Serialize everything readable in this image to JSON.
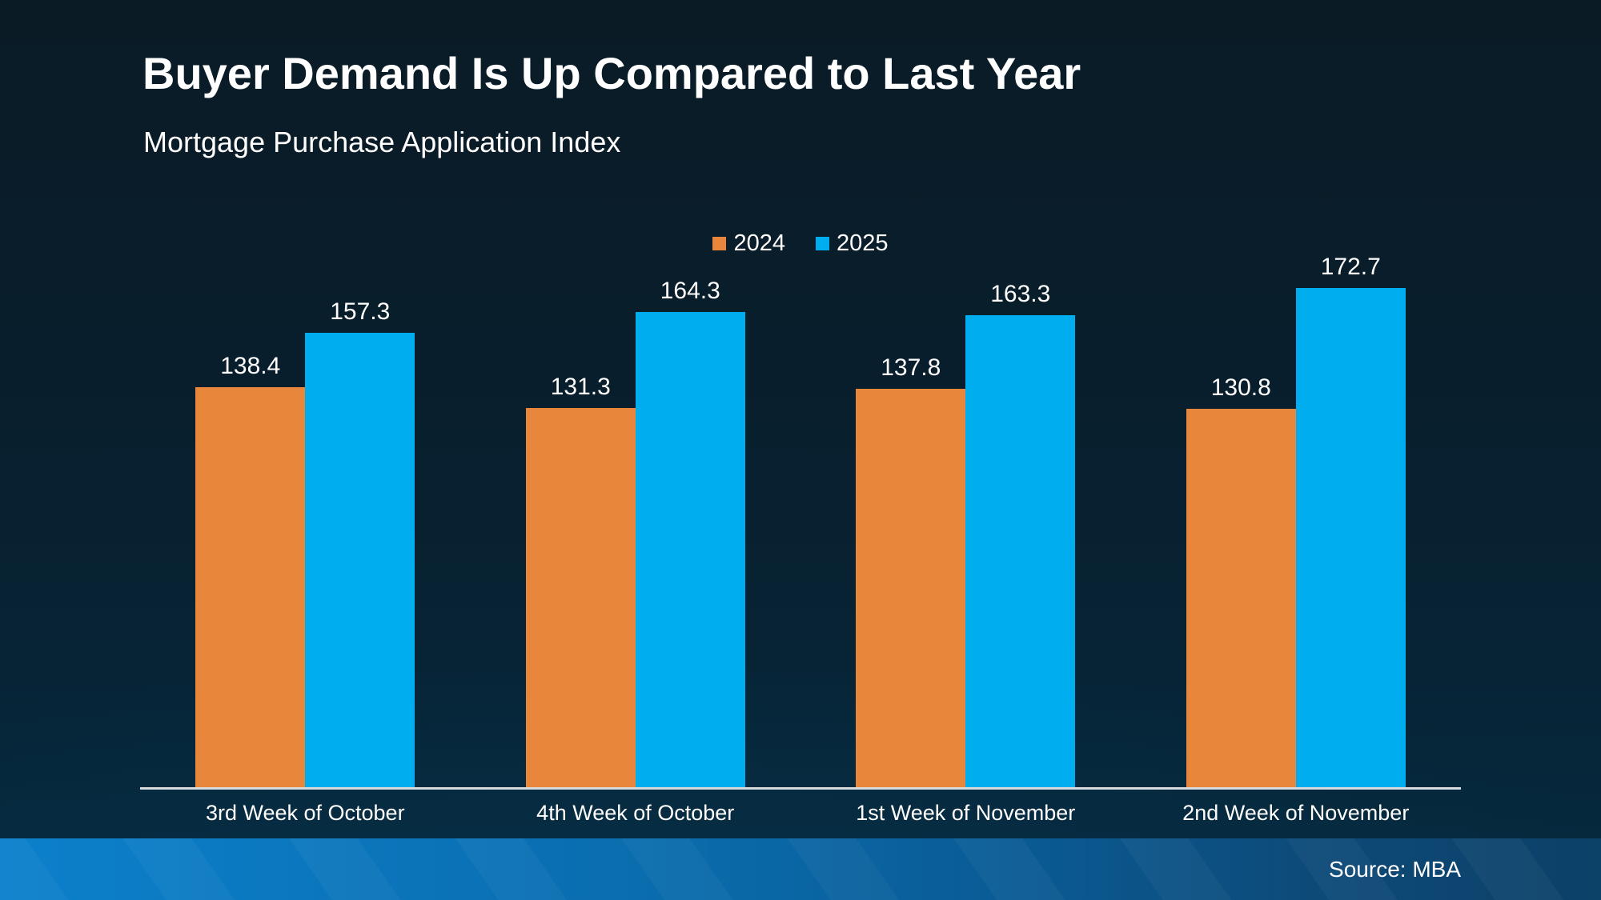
{
  "header": {
    "title": "Buyer Demand Is Up Compared to Last Year",
    "subtitle": "Mortgage Purchase Application Index"
  },
  "legend": {
    "items": [
      {
        "label": "2024",
        "color": "#E8873B"
      },
      {
        "label": "2025",
        "color": "#00AEEF"
      }
    ]
  },
  "footer": {
    "source": "Source: MBA"
  },
  "colors": {
    "background_top": "#0A1B26",
    "background_bottom": "#052A40",
    "bar_2024": "#E8873B",
    "bar_2025": "#00AEEF",
    "axis_line": "#D7DBDE",
    "footer_gradient_left": "#0C80CC",
    "footer_gradient_right": "#0C4168",
    "text": "#FFFFFF"
  },
  "chart_data": {
    "type": "bar",
    "title": "Buyer Demand Is Up Compared to Last Year",
    "subtitle": "Mortgage Purchase Application Index",
    "categories": [
      "3rd Week of October",
      "4th Week of October",
      "1st Week of November",
      "2nd Week of November"
    ],
    "series": [
      {
        "name": "2024",
        "color": "#E8873B",
        "values": [
          138.4,
          131.3,
          137.8,
          130.8
        ]
      },
      {
        "name": "2025",
        "color": "#00AEEF",
        "values": [
          157.3,
          164.3,
          163.3,
          172.7
        ]
      }
    ],
    "value_labels": true,
    "value_label_decimals": 1,
    "grid": false,
    "y_axis_visible": false,
    "legend_position": "top-center",
    "ylim": [
      0,
      181
    ],
    "xlabel": "",
    "ylabel": ""
  }
}
